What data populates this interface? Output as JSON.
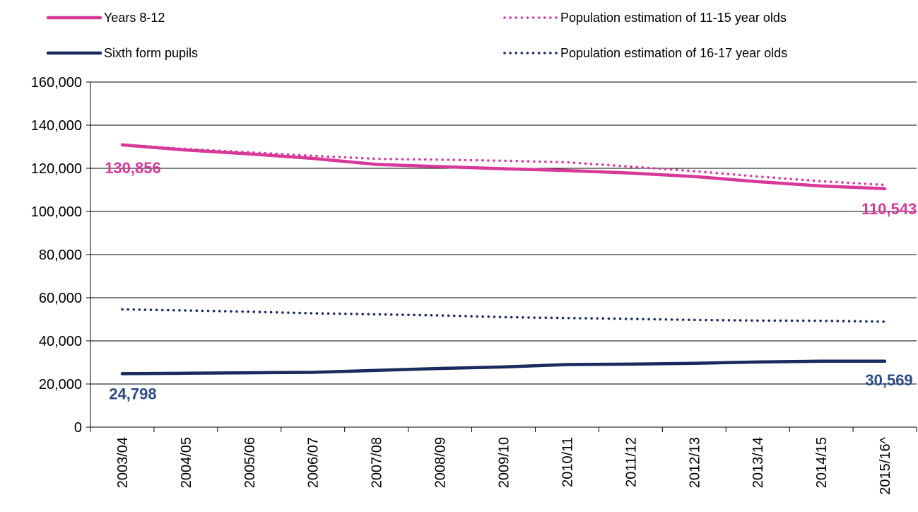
{
  "chart_data": {
    "type": "line",
    "title": "",
    "xlabel": "",
    "ylabel": "",
    "categories": [
      "2003/04",
      "2004/05",
      "2005/06",
      "2006/07",
      "2007/08",
      "2008/09",
      "2009/10",
      "2010/11",
      "2011/12",
      "2012/13",
      "2013/14",
      "2014/15",
      "2015/16^"
    ],
    "ylim": [
      0,
      160000
    ],
    "yticks": [
      0,
      20000,
      40000,
      60000,
      80000,
      100000,
      120000,
      140000,
      160000
    ],
    "ytick_labels": [
      "0",
      "20,000",
      "40,000",
      "60,000",
      "80,000",
      "100,000",
      "120,000",
      "140,000",
      "160,000"
    ],
    "grid": "horizontal",
    "legend_position": "top",
    "series": [
      {
        "name": "Years 8-12",
        "style": "solid",
        "color": "#D6399A",
        "values": [
          130856,
          128500,
          126700,
          124600,
          121800,
          120800,
          119800,
          119000,
          117800,
          116200,
          113800,
          111800,
          110543
        ]
      },
      {
        "name": "Sixth form pupils",
        "style": "solid",
        "color": "#1B2A5E",
        "values": [
          24798,
          25000,
          25200,
          25400,
          26300,
          27200,
          27900,
          29000,
          29200,
          29600,
          30200,
          30600,
          30569
        ]
      },
      {
        "name": "Population estimation of 11-15 year olds",
        "style": "dotted",
        "color": "#D6399A",
        "values": [
          131000,
          129000,
          127400,
          125800,
          124400,
          124000,
          123500,
          122800,
          120800,
          118700,
          116200,
          114000,
          112300
        ]
      },
      {
        "name": "Population estimation of 16-17 year olds",
        "style": "dotted",
        "color": "#1B2A5E",
        "values": [
          54600,
          54100,
          53500,
          52800,
          52300,
          51800,
          51000,
          50600,
          50200,
          49700,
          49400,
          49300,
          48900
        ]
      }
    ],
    "annotations": [
      {
        "text": "130,856",
        "series": 0,
        "index": 0,
        "color": "#D6399A"
      },
      {
        "text": "110,543",
        "series": 0,
        "index": 12,
        "color": "#D6399A"
      },
      {
        "text": "24,798",
        "series": 1,
        "index": 0,
        "color": "#2B4B84"
      },
      {
        "text": "30,569",
        "series": 1,
        "index": 12,
        "color": "#2B4B84"
      }
    ]
  }
}
